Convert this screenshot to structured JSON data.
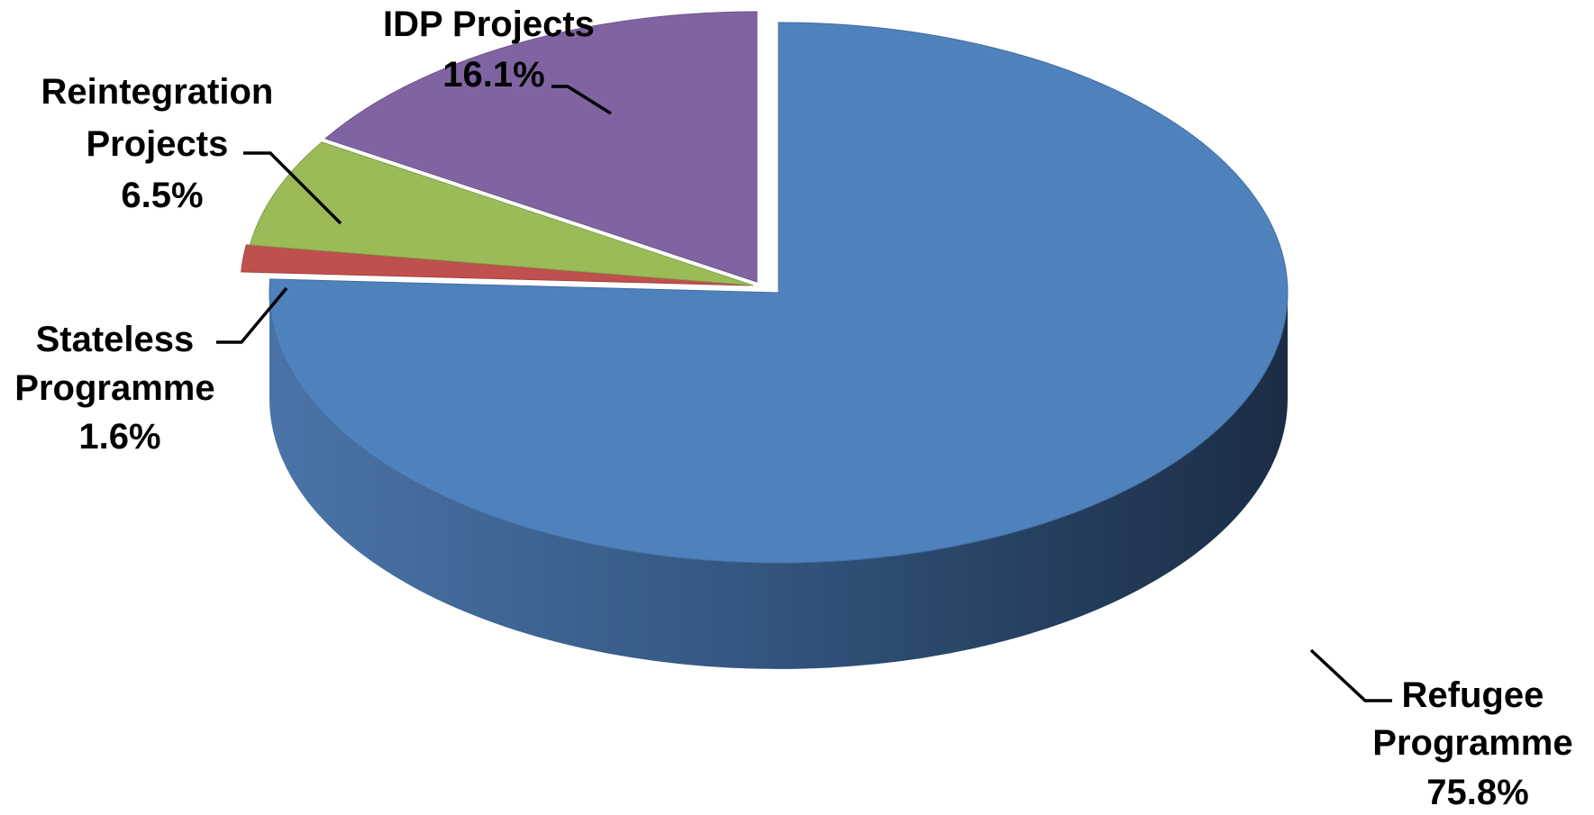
{
  "chart_data": {
    "type": "pie",
    "style": "3d-exploded",
    "title": "",
    "slices": [
      {
        "label_lines": [
          "Refugee",
          "Programme"
        ],
        "value": 75.8,
        "value_text": "75.8%",
        "color": "#4F81BD"
      },
      {
        "label_lines": [
          "Stateless",
          "Programme"
        ],
        "value": 1.6,
        "value_text": "1.6%",
        "color": "#C0504D"
      },
      {
        "label_lines": [
          "Reintegration",
          "Projects"
        ],
        "value": 6.5,
        "value_text": "6.5%",
        "color": "#9BBB59"
      },
      {
        "label_lines": [
          "IDP Projects"
        ],
        "value": 16.1,
        "value_text": "16.1%",
        "color": "#8064A2"
      }
    ]
  }
}
